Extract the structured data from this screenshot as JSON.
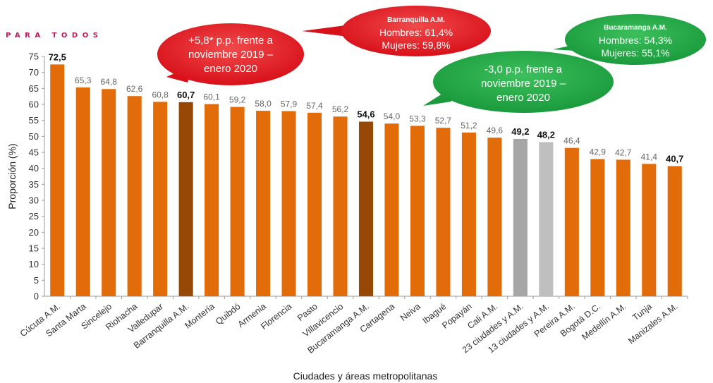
{
  "header": {
    "brand": "PARA TODOS",
    "brand_color": "#c0185c"
  },
  "chart_data": {
    "type": "bar",
    "ylabel": "Proporción (%)",
    "xlabel": "Ciudades y áreas metropolitanas",
    "ylim": [
      0,
      75
    ],
    "yticks": [
      0,
      5,
      10,
      15,
      20,
      25,
      30,
      35,
      40,
      45,
      50,
      55,
      60,
      65,
      70,
      75
    ],
    "grid": false,
    "categories": [
      "Cúcuta A.M.",
      "Santa Marta",
      "Sincelejo",
      "Riohacha",
      "Valledupar",
      "Barranquilla A.M.",
      "Montería",
      "Quibdó",
      "Armenia",
      "Florencia",
      "Pasto",
      "Villavicencio",
      "Bucaramanga A.M.",
      "Cartagena",
      "Neiva",
      "Ibagué",
      "Popayán",
      "Cali A.M.",
      "23 ciudades y A.M.",
      "13 ciudades y A.M.",
      "Pereira A.M.",
      "Bogotá D.C.",
      "Medellín A.M.",
      "Tunja",
      "Manizales A.M."
    ],
    "values": [
      72.5,
      65.3,
      64.8,
      62.6,
      60.8,
      60.7,
      60.1,
      59.2,
      58.0,
      57.9,
      57.4,
      56.2,
      54.6,
      54.0,
      53.3,
      52.7,
      51.2,
      49.6,
      49.2,
      48.2,
      46.4,
      42.9,
      42.7,
      41.4,
      40.7
    ],
    "value_labels": [
      "72,5",
      "65,3",
      "64,8",
      "62,6",
      "60,8",
      "60,7",
      "60,1",
      "59,2",
      "58,0",
      "57,9",
      "57,4",
      "56,2",
      "54,6",
      "54,0",
      "53,3",
      "52,7",
      "51,2",
      "49,6",
      "49,2",
      "48,2",
      "46,4",
      "42,9",
      "42,7",
      "41,4",
      "40,7"
    ],
    "bold_labels": [
      0,
      5,
      12,
      18,
      19,
      24
    ],
    "bar_colors": [
      "#e36c0a",
      "#e36c0a",
      "#e36c0a",
      "#e36c0a",
      "#e36c0a",
      "#974706",
      "#e36c0a",
      "#e36c0a",
      "#e36c0a",
      "#e36c0a",
      "#e36c0a",
      "#e36c0a",
      "#974706",
      "#e36c0a",
      "#e36c0a",
      "#e36c0a",
      "#e36c0a",
      "#e36c0a",
      "#a6a6a6",
      "#bfbfbf",
      "#e36c0a",
      "#e36c0a",
      "#e36c0a",
      "#e36c0a",
      "#e36c0a"
    ],
    "annotations": {
      "red_change": {
        "lines": [
          "+5,8* p.p. frente a",
          "noviembre 2019 –",
          "enero 2020"
        ],
        "color": "#e8141c"
      },
      "red_detail": {
        "lines": [
          "Barranquilla A.M.",
          "Hombres: 61,4%",
          "Mujeres: 59,8%"
        ],
        "color": "#e8141c"
      },
      "green_change": {
        "lines": [
          "-3,0 p.p. frente a",
          "noviembre 2019 –",
          "enero 2020"
        ],
        "color": "#21a243"
      },
      "green_detail": {
        "lines": [
          "Bucaramanga A.M.",
          "Hombres: 54,3%",
          "Mujeres: 55,1%"
        ],
        "color": "#21a243"
      }
    }
  }
}
